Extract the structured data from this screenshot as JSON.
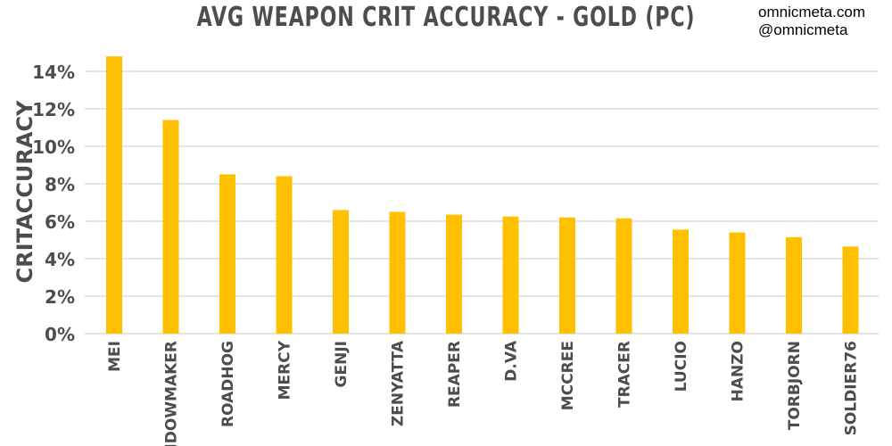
{
  "watermark": {
    "site": "omnicmeta.com",
    "handle": "@omnicmeta"
  },
  "chart_data": {
    "type": "bar",
    "title": "AVG WEAPON CRIT ACCURACY - GOLD (PC)",
    "xlabel": "",
    "ylabel": "CRITACCURACY",
    "categories": [
      "MEI",
      "WIDOWMAKER",
      "ROADHOG",
      "MERCY",
      "GENJI",
      "ZENYATTA",
      "REAPER",
      "D.VA",
      "MCCREE",
      "TRACER",
      "LUCIO",
      "HANZO",
      "TORBJORN",
      "SOLDIER76"
    ],
    "values": [
      14.8,
      11.4,
      8.5,
      8.4,
      6.6,
      6.5,
      6.35,
      6.25,
      6.2,
      6.15,
      5.55,
      5.4,
      5.15,
      4.65
    ],
    "yticks": [
      "0%",
      "2%",
      "4%",
      "6%",
      "8%",
      "10%",
      "12%",
      "14%"
    ],
    "ylim": [
      0,
      15
    ],
    "grid": true,
    "bar_color": "#ffc000",
    "gridline_color": "#c8c8c8",
    "text_color": "#4d4d4d"
  }
}
